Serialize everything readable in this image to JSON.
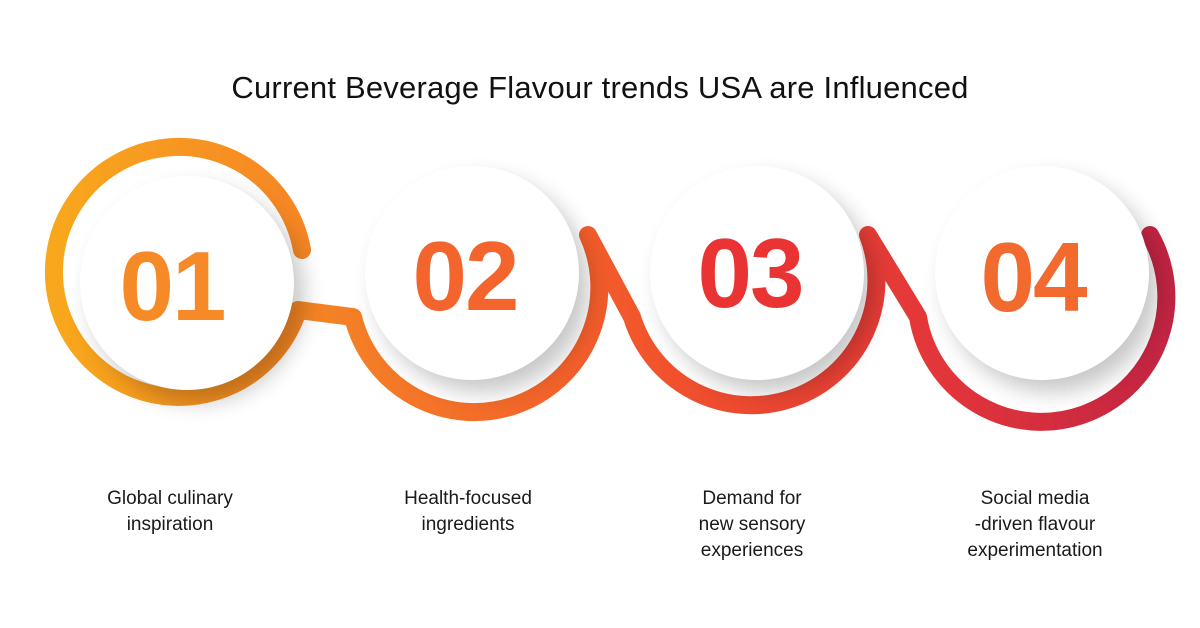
{
  "title": "Current Beverage Flavour trends USA are Influenced",
  "colors": {
    "orange": "#f7a21d",
    "orange_red": "#f4602a",
    "red": "#e83233",
    "crimson": "#c9263f"
  },
  "steps": [
    {
      "number": "01",
      "number_color": "#f58a26",
      "caption_lines": [
        "Global culinary",
        "inspiration"
      ]
    },
    {
      "number": "02",
      "number_color": "#f3652c",
      "caption_lines": [
        "Health-focused",
        "ingredients"
      ]
    },
    {
      "number": "03",
      "number_color": "#ea3433",
      "caption_lines": [
        "Demand for",
        "new sensory",
        "experiences"
      ]
    },
    {
      "number": "04",
      "number_color": "#f26a2e",
      "caption_lines": [
        "Social media",
        "-driven flavour",
        "experimentation"
      ]
    }
  ]
}
